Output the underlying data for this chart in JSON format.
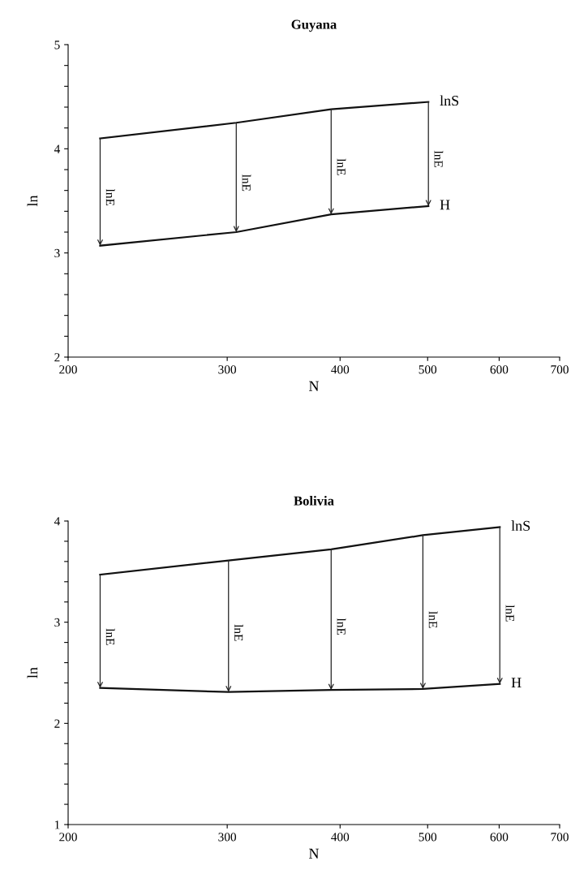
{
  "chart_data": [
    {
      "type": "line",
      "title": "Guyana",
      "xlabel": "N",
      "ylabel": "ln",
      "log": "x",
      "grid": false,
      "legend": false,
      "marker": "none",
      "line_style": "solid",
      "xlim": [
        200,
        700
      ],
      "xticks": [
        200,
        300,
        400,
        500,
        600,
        700
      ],
      "ylim": [
        2,
        5
      ],
      "yticks": [
        2,
        {
          "value": 2.2,
          "label": null
        },
        {
          "value": 2.4,
          "label": null
        },
        {
          "value": 2.6,
          "label": null
        },
        {
          "value": 2.8,
          "label": null
        },
        3,
        {
          "value": 3.2,
          "label": null
        },
        {
          "value": 3.4,
          "label": null
        },
        {
          "value": 3.6,
          "label": null
        },
        {
          "value": 3.8,
          "label": null
        },
        4,
        {
          "value": 4.2,
          "label": null
        },
        {
          "value": 4.4,
          "label": null
        },
        {
          "value": 4.6,
          "label": null
        },
        {
          "value": 4.8,
          "label": null
        },
        5
      ],
      "series": [
        {
          "name": "lnS",
          "color": "#111111",
          "x": [
            217,
            307,
            391,
            501
          ],
          "values": [
            4.1,
            4.25,
            4.38,
            4.45
          ]
        },
        {
          "name": "H",
          "color": "#111111",
          "x": [
            217,
            307,
            391,
            501
          ],
          "values": [
            3.07,
            3.2,
            3.37,
            3.45
          ]
        }
      ],
      "annotations": [
        "lnE",
        "lnE",
        "lnE",
        "lnE"
      ]
    },
    {
      "type": "line",
      "title": "Bolivia",
      "xlabel": "N",
      "ylabel": "ln",
      "log": "x",
      "grid": false,
      "legend": false,
      "marker": "none",
      "line_style": "solid",
      "xlim": [
        200,
        700
      ],
      "xticks": [
        200,
        300,
        400,
        500,
        600,
        700
      ],
      "ylim": [
        1,
        4
      ],
      "yticks": [
        1,
        {
          "value": 1.2,
          "label": null
        },
        {
          "value": 1.4,
          "label": null
        },
        {
          "value": 1.6,
          "label": null
        },
        {
          "value": 1.8,
          "label": null
        },
        2,
        {
          "value": 2.2,
          "label": null
        },
        {
          "value": 2.4,
          "label": null
        },
        {
          "value": 2.6,
          "label": null
        },
        {
          "value": 2.8,
          "label": null
        },
        3,
        {
          "value": 3.2,
          "label": null
        },
        {
          "value": 3.4,
          "label": null
        },
        {
          "value": 3.6,
          "label": null
        },
        {
          "value": 3.8,
          "label": null
        },
        4
      ],
      "series": [
        {
          "name": "lnS",
          "color": "#111111",
          "x": [
            217,
            301,
            391,
            494,
            601
          ],
          "values": [
            3.47,
            3.61,
            3.72,
            3.86,
            3.94
          ]
        },
        {
          "name": "H",
          "color": "#111111",
          "x": [
            217,
            301,
            391,
            494,
            601
          ],
          "values": [
            2.35,
            2.31,
            2.33,
            2.34,
            2.39
          ]
        }
      ],
      "annotations": [
        "lnE",
        "lnE",
        "lnE",
        "lnE",
        "lnE"
      ]
    }
  ]
}
